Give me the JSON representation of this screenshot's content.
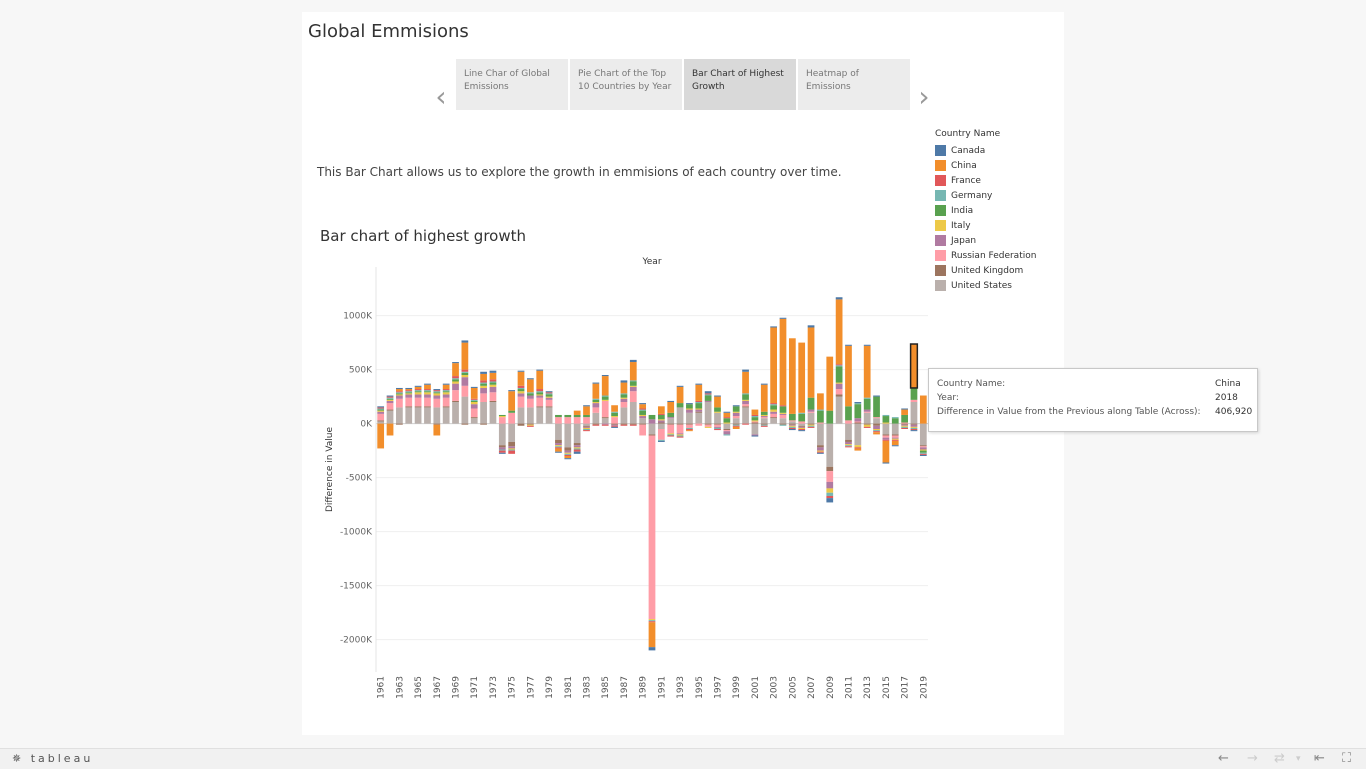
{
  "story": {
    "title": "Global Emmisions",
    "tabs": [
      {
        "label": "Line Char of Global Emissions",
        "active": false
      },
      {
        "label": "Pie Chart of the Top 10 Countries by Year",
        "active": false
      },
      {
        "label": "Bar Chart of Highest Growth",
        "active": true
      },
      {
        "label": "Heatmap of Emissions",
        "active": false
      }
    ],
    "description": "This Bar Chart allows us to explore the growth in emmisions of each country over time.",
    "chart_title": "Bar chart of highest growth"
  },
  "legend": {
    "title": "Country Name",
    "items": [
      {
        "name": "Canada",
        "color": "#4e79a7"
      },
      {
        "name": "China",
        "color": "#f28e2b"
      },
      {
        "name": "France",
        "color": "#e15759"
      },
      {
        "name": "Germany",
        "color": "#76b7b2"
      },
      {
        "name": "India",
        "color": "#59a14f"
      },
      {
        "name": "Italy",
        "color": "#edc948"
      },
      {
        "name": "Japan",
        "color": "#b07aa1"
      },
      {
        "name": "Russian Federation",
        "color": "#ff9da7"
      },
      {
        "name": "United Kingdom",
        "color": "#9c755f"
      },
      {
        "name": "United States",
        "color": "#bab0ac"
      }
    ]
  },
  "tooltip": {
    "rows": [
      {
        "label": "Country Name:",
        "value": "China"
      },
      {
        "label": "Year:",
        "value": "2018"
      },
      {
        "label": "Difference in Value from the Previous along Table (Across):",
        "value": "406,920"
      }
    ]
  },
  "toolbar": {
    "logo": "tableau"
  },
  "chart_data": {
    "type": "bar",
    "stacked": true,
    "title": "",
    "xlabel": "Year",
    "ylabel": "Difference in Value",
    "ylim": [
      -2300000,
      1450000
    ],
    "yticks": [
      1000000,
      500000,
      0,
      -500000,
      -1000000,
      -1500000,
      -2000000
    ],
    "ytick_labels": [
      "1000K",
      "500K",
      "0K",
      "-500K",
      "-1000K",
      "-1500K",
      "-2000K"
    ],
    "xtick_labels": [
      "1961",
      "1963",
      "1965",
      "1967",
      "1969",
      "1971",
      "1973",
      "1975",
      "1977",
      "1979",
      "1981",
      "1983",
      "1985",
      "1987",
      "1989",
      "1991",
      "1993",
      "1995",
      "1997",
      "1999",
      "2001",
      "2003",
      "2005",
      "2007",
      "2009",
      "2011",
      "2013",
      "2015",
      "2017",
      "2019"
    ],
    "x": [
      1961,
      1962,
      1963,
      1964,
      1965,
      1966,
      1967,
      1968,
      1969,
      1970,
      1971,
      1972,
      1973,
      1974,
      1975,
      1976,
      1977,
      1978,
      1979,
      1980,
      1981,
      1982,
      1983,
      1984,
      1985,
      1986,
      1987,
      1988,
      1989,
      1990,
      1991,
      1992,
      1993,
      1994,
      1995,
      1996,
      1997,
      1998,
      1999,
      2000,
      2001,
      2002,
      2003,
      2004,
      2005,
      2006,
      2007,
      2008,
      2009,
      2010,
      2011,
      2012,
      2013,
      2014,
      2015,
      2016,
      2017,
      2018,
      2019
    ],
    "series": [
      {
        "name": "United States",
        "values": [
          20000,
          120000,
          150000,
          150000,
          150000,
          150000,
          150000,
          150000,
          200000,
          250000,
          50000,
          200000,
          200000,
          -200000,
          -170000,
          150000,
          150000,
          150000,
          150000,
          -150000,
          -220000,
          -180000,
          -20000,
          100000,
          50000,
          0,
          150000,
          200000,
          50000,
          -100000,
          -50000,
          50000,
          150000,
          100000,
          100000,
          200000,
          100000,
          -50000,
          50000,
          150000,
          -100000,
          50000,
          50000,
          50000,
          20000,
          -20000,
          100000,
          -200000,
          -400000,
          250000,
          -150000,
          -200000,
          100000,
          50000,
          -100000,
          -100000,
          0,
          200000,
          -200000
        ]
      },
      {
        "name": "United Kingdom",
        "values": [
          10000,
          10000,
          -10000,
          10000,
          10000,
          10000,
          -10000,
          10000,
          10000,
          -10000,
          10000,
          -10000,
          10000,
          -20000,
          -40000,
          -20000,
          -10000,
          10000,
          10000,
          -30000,
          -30000,
          -20000,
          -10000,
          -10000,
          10000,
          -10000,
          -10000,
          -10000,
          -10000,
          -10000,
          10000,
          -10000,
          -10000,
          -10000,
          10000,
          -10000,
          -10000,
          -10000,
          -10000,
          10000,
          10000,
          -10000,
          10000,
          -10000,
          -10000,
          -10000,
          -10000,
          -20000,
          -40000,
          20000,
          -20000,
          10000,
          -10000,
          -20000,
          -10000,
          -10000,
          -10000,
          -10000,
          -10000
        ]
      },
      {
        "name": "Russian Federation",
        "values": [
          60000,
          60000,
          80000,
          80000,
          80000,
          80000,
          80000,
          80000,
          100000,
          100000,
          80000,
          80000,
          80000,
          60000,
          100000,
          100000,
          80000,
          80000,
          60000,
          60000,
          60000,
          60000,
          60000,
          50000,
          150000,
          60000,
          50000,
          100000,
          -100000,
          -1700000,
          -100000,
          -80000,
          -80000,
          -30000,
          -20000,
          -20000,
          -20000,
          -10000,
          20000,
          20000,
          10000,
          10000,
          30000,
          30000,
          10000,
          20000,
          10000,
          10000,
          -100000,
          50000,
          30000,
          10000,
          10000,
          10000,
          -20000,
          -20000,
          10000,
          20000,
          -10000
        ]
      },
      {
        "name": "Japan",
        "values": [
          20000,
          20000,
          30000,
          30000,
          30000,
          30000,
          30000,
          30000,
          60000,
          80000,
          40000,
          50000,
          50000,
          -20000,
          -20000,
          30000,
          30000,
          20000,
          20000,
          -20000,
          -20000,
          -20000,
          -10000,
          40000,
          -10000,
          -10000,
          30000,
          40000,
          20000,
          40000,
          20000,
          10000,
          -10000,
          30000,
          20000,
          10000,
          -10000,
          -30000,
          30000,
          30000,
          -10000,
          10000,
          20000,
          10000,
          -10000,
          -10000,
          20000,
          -30000,
          -60000,
          50000,
          -20000,
          30000,
          20000,
          -30000,
          -20000,
          -10000,
          -10000,
          -20000,
          -20000
        ]
      },
      {
        "name": "Italy",
        "values": [
          10000,
          10000,
          10000,
          10000,
          20000,
          20000,
          20000,
          20000,
          20000,
          20000,
          20000,
          20000,
          20000,
          10000,
          -10000,
          20000,
          -10000,
          10000,
          10000,
          -10000,
          -10000,
          -10000,
          -10000,
          10000,
          10000,
          10000,
          10000,
          10000,
          10000,
          -10000,
          10000,
          -10000,
          -10000,
          10000,
          10000,
          -10000,
          10000,
          10000,
          10000,
          10000,
          10000,
          10000,
          20000,
          10000,
          -10000,
          -10000,
          -10000,
          -10000,
          -40000,
          10000,
          -10000,
          -20000,
          -20000,
          -10000,
          10000,
          -10000,
          -10000,
          -10000,
          -10000
        ]
      },
      {
        "name": "India",
        "values": [
          10000,
          10000,
          10000,
          10000,
          10000,
          10000,
          10000,
          10000,
          20000,
          20000,
          10000,
          20000,
          20000,
          10000,
          20000,
          20000,
          20000,
          20000,
          20000,
          20000,
          20000,
          20000,
          20000,
          20000,
          30000,
          30000,
          30000,
          40000,
          40000,
          40000,
          40000,
          40000,
          40000,
          40000,
          50000,
          50000,
          40000,
          40000,
          50000,
          50000,
          30000,
          30000,
          40000,
          60000,
          60000,
          70000,
          110000,
          110000,
          120000,
          150000,
          130000,
          130000,
          100000,
          190000,
          60000,
          50000,
          70000,
          110000,
          -20000
        ]
      },
      {
        "name": "Germany",
        "values": [
          10000,
          10000,
          10000,
          10000,
          10000,
          10000,
          10000,
          10000,
          10000,
          10000,
          10000,
          10000,
          10000,
          -10000,
          -10000,
          10000,
          10000,
          10000,
          10000,
          -10000,
          -10000,
          -10000,
          -10000,
          10000,
          10000,
          10000,
          10000,
          10000,
          10000,
          -10000,
          -10000,
          -10000,
          -10000,
          -10000,
          10000,
          10000,
          -10000,
          -10000,
          -10000,
          10000,
          10000,
          -10000,
          10000,
          -10000,
          -10000,
          10000,
          -10000,
          10000,
          -30000,
          10000,
          -10000,
          10000,
          10000,
          -10000,
          10000,
          10000,
          -10000,
          -10000,
          -10000
        ]
      },
      {
        "name": "France",
        "values": [
          10000,
          10000,
          10000,
          10000,
          10000,
          10000,
          10000,
          10000,
          20000,
          20000,
          10000,
          20000,
          20000,
          -20000,
          -30000,
          20000,
          -10000,
          20000,
          10000,
          -10000,
          -10000,
          -20000,
          -10000,
          -10000,
          -10000,
          -10000,
          -10000,
          -10000,
          10000,
          -10000,
          10000,
          -10000,
          -10000,
          -10000,
          10000,
          10000,
          -10000,
          10000,
          -10000,
          -10000,
          10000,
          -10000,
          10000,
          10000,
          -10000,
          -10000,
          -10000,
          -10000,
          -20000,
          10000,
          -10000,
          -10000,
          -10000,
          -10000,
          -10000,
          -10000,
          -10000,
          -10000,
          -10000
        ]
      },
      {
        "name": "China",
        "values": [
          -230000,
          -110000,
          20000,
          10000,
          20000,
          40000,
          -100000,
          40000,
          120000,
          250000,
          100000,
          60000,
          60000,
          0,
          180000,
          130000,
          120000,
          170000,
          0,
          -30000,
          -20000,
          40000,
          80000,
          140000,
          180000,
          60000,
          100000,
          170000,
          40000,
          -230000,
          70000,
          100000,
          150000,
          -10000,
          150000,
          0,
          100000,
          40000,
          -20000,
          200000,
          50000,
          250000,
          700000,
          800000,
          700000,
          650000,
          650000,
          150000,
          500000,
          600000,
          560000,
          -20000,
          480000,
          -20000,
          -200000,
          -40000,
          50000,
          406920,
          260000
        ]
      },
      {
        "name": "Canada",
        "values": [
          10000,
          10000,
          10000,
          10000,
          10000,
          10000,
          10000,
          10000,
          10000,
          20000,
          10000,
          20000,
          20000,
          -10000,
          10000,
          10000,
          10000,
          10000,
          10000,
          -10000,
          -10000,
          -20000,
          10000,
          10000,
          10000,
          -10000,
          20000,
          20000,
          10000,
          -30000,
          -10000,
          10000,
          10000,
          10000,
          10000,
          20000,
          10000,
          10000,
          10000,
          20000,
          -10000,
          10000,
          10000,
          10000,
          -10000,
          -10000,
          20000,
          -10000,
          -40000,
          20000,
          10000,
          10000,
          10000,
          10000,
          -10000,
          -10000,
          10000,
          -10000,
          -10000
        ]
      }
    ]
  }
}
